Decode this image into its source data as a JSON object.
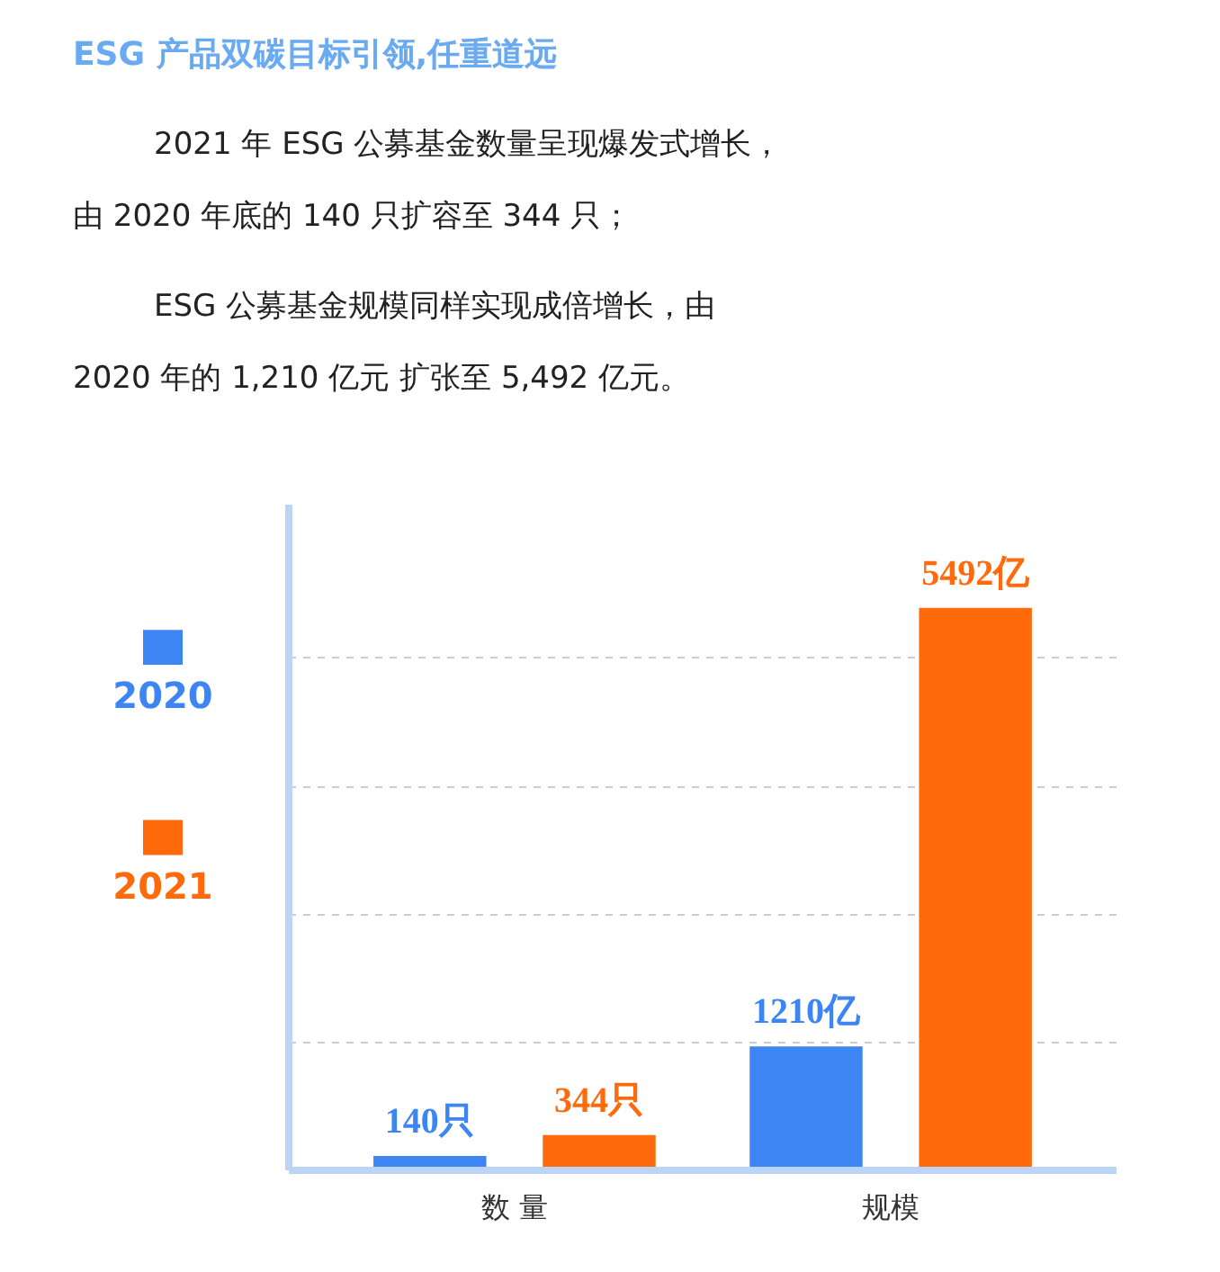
{
  "chart_data": {
    "type": "bar",
    "title": "ESG 产品双碳目标引领,任重道远",
    "annotations": [
      "2021 年 ESG 公募基金数量呈现爆发式增长，",
      "由 2020 年底的 140 只扩容至 344 只；",
      "ESG 公募基金规模同样实现成倍增长，由",
      "2020 年的 1,210 亿元 扩张至 5,492 亿元。"
    ],
    "categories": [
      "数 量",
      "规模"
    ],
    "series": [
      {
        "name": "2020",
        "color": "#3d85f2",
        "values": [
          140,
          1210
        ],
        "value_labels": [
          "140只",
          "1210亿"
        ]
      },
      {
        "name": "2021",
        "color": "#ff6a0d",
        "values": [
          344,
          5492
        ],
        "value_labels": [
          "344只",
          "5492亿"
        ]
      }
    ],
    "ylim": [
      0,
      6500
    ],
    "yticks": [
      {
        "value": 1250,
        "label": null
      },
      {
        "value": 2500,
        "label": null
      },
      {
        "value": 3750,
        "label": null
      },
      {
        "value": 5000,
        "label": null
      }
    ],
    "grid": "y",
    "legend": "left",
    "tick_labels": "x"
  }
}
